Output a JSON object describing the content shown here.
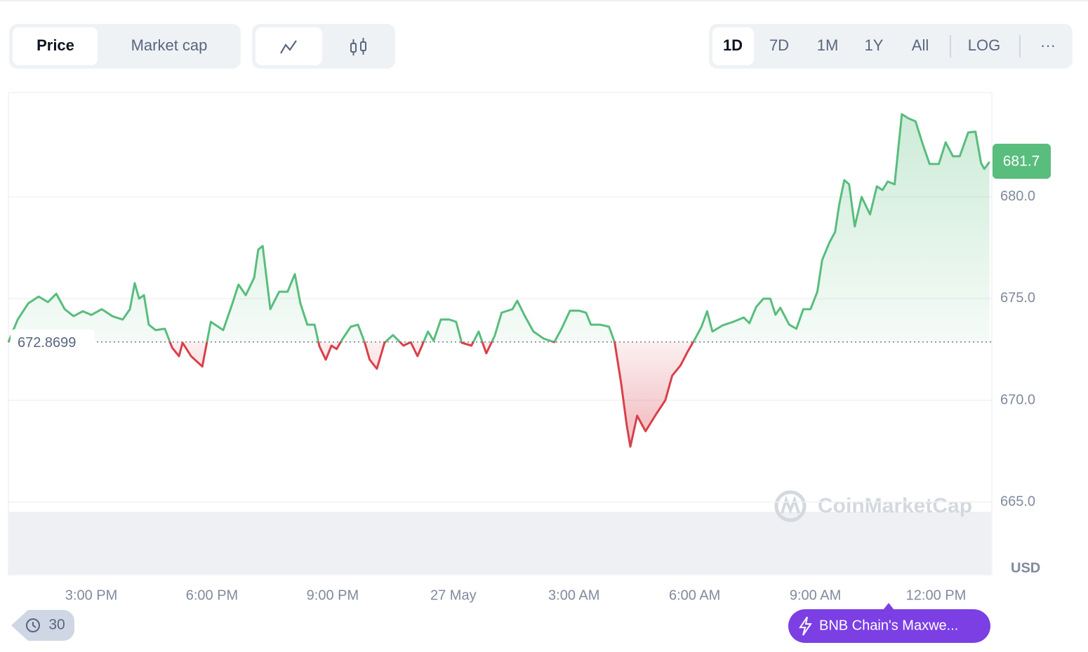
{
  "toolbar": {
    "view_tabs": [
      "Price",
      "Market cap"
    ],
    "ranges": [
      "1D",
      "7D",
      "1M",
      "1Y",
      "All"
    ],
    "scale": "LOG",
    "more": "···"
  },
  "chart_data": {
    "type": "line",
    "color": "#58bd7d",
    "down_color": "#d9404a",
    "x": [
      12.94,
      13.17,
      13.43,
      13.69,
      13.92,
      14.13,
      14.34,
      14.56,
      14.79,
      15.0,
      15.26,
      15.52,
      15.78,
      15.96,
      16.08,
      16.19,
      16.31,
      16.43,
      16.6,
      16.83,
      17.01,
      17.18,
      17.27,
      17.48,
      17.76,
      17.97,
      18.28,
      18.49,
      18.66,
      18.84,
      19.05,
      19.15,
      19.26,
      19.45,
      19.67,
      19.88,
      20.06,
      20.2,
      20.37,
      20.55,
      20.67,
      20.83,
      20.97,
      21.1,
      21.24,
      21.45,
      21.63,
      21.8,
      21.92,
      22.1,
      22.29,
      22.5,
      22.76,
      22.94,
      23.11,
      23.37,
      23.51,
      23.69,
      23.9,
      24.07,
      24.21,
      24.45,
      24.63,
      24.82,
      25.03,
      25.2,
      25.47,
      25.59,
      25.78,
      25.99,
      26.25,
      26.51,
      26.69,
      26.9,
      27.12,
      27.3,
      27.42,
      27.65,
      27.87,
      28.01,
      28.17,
      28.31,
      28.4,
      28.57,
      28.78,
      29.04,
      29.27,
      29.44,
      29.65,
      29.83,
      30.03,
      30.17,
      30.31,
      30.44,
      30.7,
      30.96,
      31.22,
      31.36,
      31.53,
      31.71,
      31.88,
      32.01,
      32.13,
      32.35,
      32.53,
      32.7,
      32.88,
      33.05,
      33.17,
      33.35,
      33.49,
      33.59,
      33.72,
      33.84,
      33.98,
      34.15,
      34.36,
      34.53,
      34.67,
      34.8,
      34.97,
      35.15,
      35.32,
      35.49,
      35.67,
      35.84,
      36.07,
      36.24,
      36.42,
      36.59,
      36.8,
      36.98,
      37.12,
      37.2,
      37.33
    ],
    "values": [
      672.86,
      673.97,
      674.76,
      675.1,
      674.83,
      675.24,
      674.48,
      674.14,
      674.38,
      674.2,
      674.48,
      674.14,
      673.97,
      674.48,
      675.76,
      675.0,
      675.17,
      673.72,
      673.45,
      673.52,
      672.59,
      672.17,
      672.83,
      672.17,
      671.66,
      673.86,
      673.45,
      674.66,
      675.69,
      675.17,
      676.03,
      677.41,
      677.59,
      674.48,
      675.34,
      675.34,
      676.21,
      674.76,
      673.72,
      673.72,
      672.66,
      672.0,
      672.69,
      672.52,
      673.0,
      673.62,
      673.72,
      672.83,
      672.0,
      671.55,
      672.83,
      673.21,
      672.69,
      672.86,
      672.17,
      673.38,
      672.93,
      673.97,
      673.97,
      673.86,
      672.83,
      672.69,
      673.38,
      672.31,
      673.17,
      674.31,
      674.48,
      674.9,
      674.14,
      673.38,
      673.03,
      672.86,
      673.52,
      674.41,
      674.41,
      674.31,
      673.72,
      673.72,
      673.62,
      672.86,
      670.86,
      668.79,
      667.72,
      669.24,
      668.48,
      669.31,
      670.0,
      671.21,
      671.72,
      672.41,
      673.1,
      673.62,
      674.38,
      673.38,
      673.69,
      673.86,
      674.07,
      673.79,
      674.59,
      675.0,
      675.0,
      674.21,
      674.55,
      673.72,
      673.52,
      674.48,
      674.48,
      675.34,
      676.9,
      677.76,
      678.28,
      679.59,
      680.83,
      680.62,
      678.55,
      680.0,
      679.14,
      680.52,
      680.34,
      680.76,
      680.62,
      684.07,
      683.86,
      683.72,
      682.59,
      681.62,
      681.62,
      682.69,
      682.0,
      682.0,
      683.17,
      683.21,
      681.66,
      681.38,
      681.72
    ],
    "baseline": 672.8699,
    "current_price": {
      "value": 681.72,
      "label": "681.7"
    },
    "xlim": [
      12.94,
      37.37
    ],
    "xticks": [
      {
        "value": 15,
        "label": "3:00 PM"
      },
      {
        "value": 18,
        "label": "6:00 PM"
      },
      {
        "value": 21,
        "label": "9:00 PM"
      },
      {
        "value": 24,
        "label": "27 May"
      },
      {
        "value": 27,
        "label": "3:00 AM"
      },
      {
        "value": 30,
        "label": "6:00 AM"
      },
      {
        "value": 33,
        "label": "9:00 AM"
      },
      {
        "value": 36,
        "label": "12:00 PM"
      }
    ],
    "ylim": [
      665,
      685.1
    ],
    "yticks": [
      {
        "value": 665,
        "label": "665.0"
      },
      {
        "value": 670,
        "label": "670.0"
      },
      {
        "value": 675,
        "label": "675.0"
      },
      {
        "value": 680,
        "label": "680.0"
      }
    ],
    "y_unit": "USD",
    "grid": true
  },
  "watermark": "CoinMarketCap",
  "footer": {
    "history_count": "30",
    "news": "BNB Chain's Maxwe..."
  }
}
